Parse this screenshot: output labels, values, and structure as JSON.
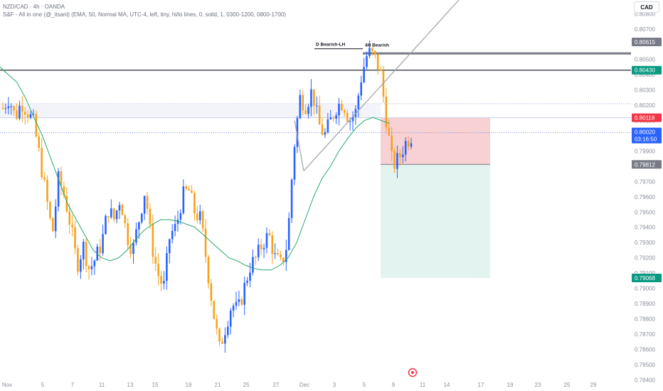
{
  "legend": {
    "line1": "NZD/CAD · 4h · OANDA",
    "line2": "S&F - All in one (@_itsanl) (EMA, 50, Normal MA, UTC-4, left, tiny, hi/lo lines, 0, solid, 1, 0300-1200, 0800-1700)"
  },
  "currency_button": "CAD",
  "chart_data": {
    "type": "candlestick",
    "symbol": "NZD/CAD",
    "timeframe": "4h",
    "y_range": [
      0.7842,
      0.8089
    ],
    "y_ticks": [
      "0.80800",
      "0.80700",
      "0.80600",
      "0.80500",
      "0.80400",
      "0.80300",
      "0.80200",
      "0.80100",
      "0.80000",
      "0.79900",
      "0.79800",
      "0.79700",
      "0.79600",
      "0.79500",
      "0.79400",
      "0.79300",
      "0.79200",
      "0.79100",
      "0.79000",
      "0.78900",
      "0.78800",
      "0.78700",
      "0.78600",
      "0.78500",
      "0.78400"
    ],
    "x_ticks": [
      "Nov",
      "5",
      "7",
      "11",
      "13",
      "15",
      "19",
      "21",
      "25",
      "27",
      "Dec",
      "3",
      "5",
      "9",
      "11",
      "14",
      "17",
      "19",
      "23",
      "25",
      "29"
    ],
    "candle_path": [
      0.8018,
      0.8025,
      0.8012,
      0.8022,
      0.8016,
      0.8008,
      0.7985,
      0.796,
      0.7935,
      0.7972,
      0.796,
      0.794,
      0.7915,
      0.7928,
      0.7912,
      0.792,
      0.793,
      0.7952,
      0.7945,
      0.796,
      0.7935,
      0.7925,
      0.7945,
      0.7965,
      0.793,
      0.791,
      0.79,
      0.7935,
      0.794,
      0.796,
      0.7965,
      0.795,
      0.7945,
      0.7915,
      0.7885,
      0.786,
      0.7875,
      0.789,
      0.7885,
      0.79,
      0.7915,
      0.792,
      0.793,
      0.7935,
      0.792,
      0.7915,
      0.793,
      0.799,
      0.8025,
      0.802,
      0.803,
      0.8008,
      0.8,
      0.801,
      0.802,
      0.8022,
      0.801,
      0.8015,
      0.804,
      0.8055,
      0.8052,
      0.8042,
      0.801,
      0.798,
      0.7985,
      0.7995,
      0.8
    ],
    "ema50_path": [
      0.8045,
      0.804,
      0.8035,
      0.8025,
      0.8012,
      0.8,
      0.7985,
      0.797,
      0.7955,
      0.7945,
      0.7935,
      0.7925,
      0.792,
      0.7918,
      0.792,
      0.7925,
      0.7932,
      0.7938,
      0.7942,
      0.7945,
      0.7945,
      0.7944,
      0.7942,
      0.794,
      0.7935,
      0.793,
      0.7925,
      0.792,
      0.7918,
      0.7915,
      0.7913,
      0.7912,
      0.7912,
      0.7915,
      0.792,
      0.793,
      0.7945,
      0.796,
      0.7972,
      0.798,
      0.799,
      0.7998,
      0.8005,
      0.801,
      0.8012,
      0.801,
      0.8008
    ],
    "horizontal_lines": [
      {
        "price": 0.8043,
        "style": "solid",
        "color": "#131722"
      },
      {
        "price": 0.8054,
        "style": "solid",
        "color": "#787b86"
      },
      {
        "price": 0.8021,
        "style": "dotted",
        "color": "#9aa7d9"
      },
      {
        "price": 0.8002,
        "style": "dotted",
        "color": "#7b8fe0"
      }
    ],
    "position": {
      "entry": 0.79812,
      "stop": 0.80118,
      "target": 0.79068
    },
    "annotations": [
      "D Bearish-LH",
      "4H Bearish"
    ],
    "price_labels": [
      {
        "value": "0.80615",
        "color": "#787b86"
      },
      {
        "value": "0.80430",
        "color": "#089981"
      },
      {
        "value": "0.80118",
        "color": "#f23645"
      },
      {
        "value": "0.80020",
        "sub": "03:16:50",
        "color": "#2962ff"
      },
      {
        "value": "0.79812",
        "color": "#787b86"
      },
      {
        "value": "0.79068",
        "color": "#089981"
      }
    ],
    "colors": {
      "up": "#2962ff",
      "down": "#f7a21b",
      "ema": "#26a869",
      "risk": "#f7c9ce",
      "reward": "#e3f3ef"
    }
  }
}
